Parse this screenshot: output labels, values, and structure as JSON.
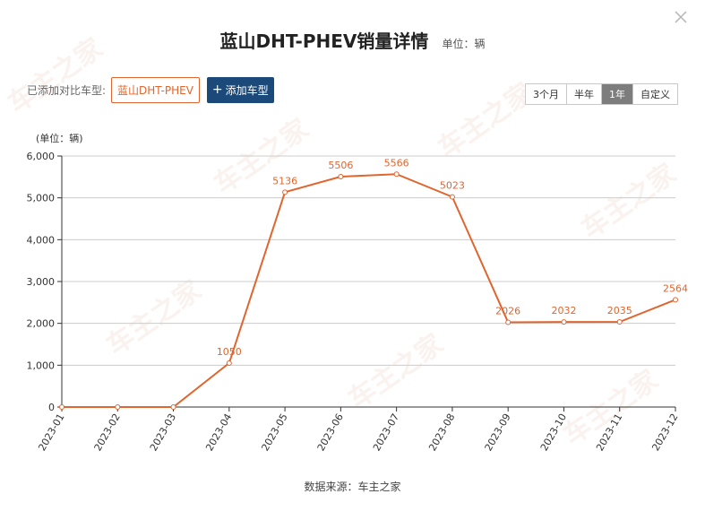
{
  "title": "蓝山DHT-PHEV销量详情",
  "unit": "单位：辆",
  "compare": {
    "label": "已添加对比车型:",
    "model": "蓝山DHT-PHEV",
    "add_label": "添加车型"
  },
  "ranges": [
    {
      "label": "3个月",
      "active": false
    },
    {
      "label": "半年",
      "active": false
    },
    {
      "label": "1年",
      "active": true
    },
    {
      "label": "自定义",
      "active": false
    }
  ],
  "source": "数据来源：车主之家",
  "watermark": "车主之家",
  "colors": {
    "line": "#e0652e",
    "grid": "#cccccc",
    "button": "#1b4a7a"
  },
  "chart_data": {
    "type": "line",
    "ylabel": "(单位：辆)",
    "ylim": [
      0,
      6000
    ],
    "yticks": [
      "0",
      "1,000",
      "2,000",
      "3,000",
      "4,000",
      "5,000",
      "6,000"
    ],
    "categories": [
      "2023-01",
      "2023-02",
      "2023-03",
      "2023-04",
      "2023-05",
      "2023-06",
      "2023-07",
      "2023-08",
      "2023-09",
      "2023-10",
      "2023-11",
      "2023-12"
    ],
    "series": [
      {
        "values": [
          0,
          0,
          0,
          1050,
          5136,
          5506,
          5566,
          5023,
          2026,
          2032,
          2035,
          2564
        ],
        "labels": [
          "",
          "",
          "",
          "1050",
          "5136",
          "5506",
          "5566",
          "5023",
          "2026",
          "2032",
          "2035",
          "2564"
        ]
      }
    ]
  }
}
